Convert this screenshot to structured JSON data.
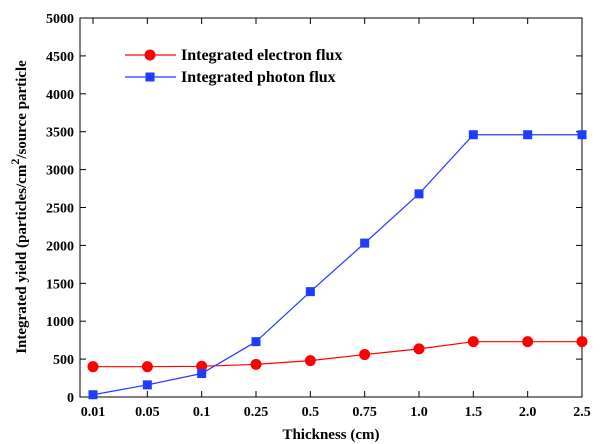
{
  "chart_data": {
    "type": "line",
    "title": "",
    "xlabel": "Thickness (cm)",
    "ylabel_parts": {
      "pre": "Integrated yield (particles/cm",
      "sup": "2",
      "post": "/source particle"
    },
    "categories": [
      "0.01",
      "0.05",
      "0.1",
      "0.25",
      "0.5",
      "0.75",
      "1.0",
      "1.5",
      "2.0",
      "2.5"
    ],
    "ylim": [
      0,
      5000
    ],
    "yticks": [
      "0",
      "500",
      "1000",
      "1500",
      "2000",
      "2500",
      "3000",
      "3500",
      "4000",
      "4500",
      "5000"
    ],
    "grid": false,
    "legend_position": "top-left",
    "series": [
      {
        "name": "Integrated electron flux",
        "color": "#ff0000",
        "marker": "circle",
        "values": [
          400,
          400,
          405,
          430,
          480,
          560,
          635,
          730,
          730,
          730
        ]
      },
      {
        "name": "Integrated photon flux",
        "color": "#1e3cff",
        "marker": "square",
        "values": [
          30,
          160,
          310,
          730,
          1390,
          2030,
          2680,
          3460,
          3460,
          3460
        ]
      }
    ]
  }
}
